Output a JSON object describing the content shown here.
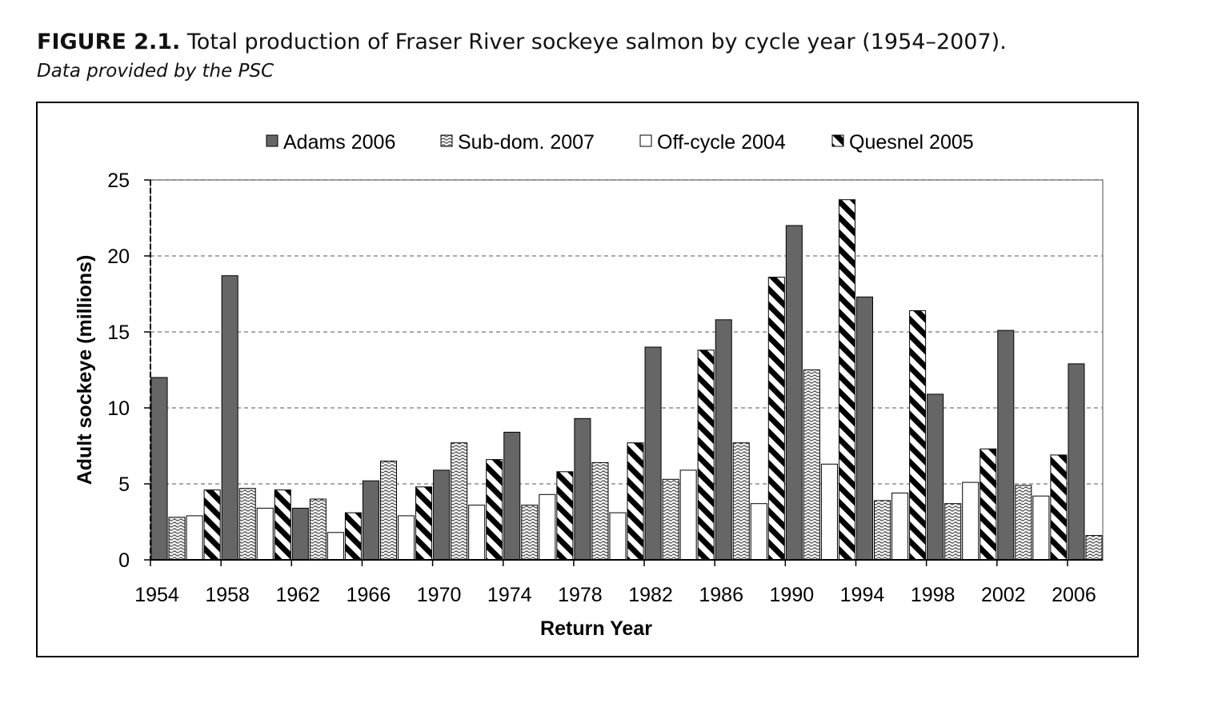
{
  "figure": {
    "label": "FIGURE 2.1.",
    "title": "Total production of Fraser River sockeye salmon by cycle year (1954–2007).",
    "subtitle": "Data provided by the PSC"
  },
  "chart_data": {
    "type": "bar",
    "xlabel": "Return Year",
    "ylabel": "Adult sockeye (millions)",
    "ylim": [
      0,
      25
    ],
    "yticks": [
      0,
      5,
      10,
      15,
      20,
      25
    ],
    "xticks": [
      1954,
      1958,
      1962,
      1966,
      1970,
      1974,
      1978,
      1982,
      1986,
      1990,
      1994,
      1998,
      2002,
      2006
    ],
    "xlim": [
      1954,
      2008
    ],
    "grid": "horizontal dashed",
    "legend_position": "top",
    "series": [
      {
        "name": "Adams 2006",
        "pattern": "solid-dark",
        "color": "#666666",
        "points": [
          [
            1954,
            12.0
          ],
          [
            1958,
            18.7
          ],
          [
            1962,
            3.4
          ],
          [
            1966,
            5.2
          ],
          [
            1970,
            5.9
          ],
          [
            1974,
            8.4
          ],
          [
            1978,
            9.3
          ],
          [
            1982,
            14.0
          ],
          [
            1986,
            15.8
          ],
          [
            1990,
            22.0
          ],
          [
            1994,
            17.3
          ],
          [
            1998,
            10.9
          ],
          [
            2002,
            15.1
          ],
          [
            2006,
            12.9
          ]
        ]
      },
      {
        "name": "Sub-dom. 2007",
        "pattern": "wavy",
        "color": "#555555",
        "points": [
          [
            1955,
            2.8
          ],
          [
            1959,
            4.7
          ],
          [
            1963,
            4.0
          ],
          [
            1967,
            6.5
          ],
          [
            1971,
            7.7
          ],
          [
            1975,
            3.6
          ],
          [
            1979,
            6.4
          ],
          [
            1983,
            5.3
          ],
          [
            1987,
            7.7
          ],
          [
            1991,
            12.5
          ],
          [
            1995,
            3.9
          ],
          [
            1999,
            3.7
          ],
          [
            2003,
            4.9
          ],
          [
            2007,
            1.6
          ]
        ]
      },
      {
        "name": "Off-cycle 2004",
        "pattern": "white",
        "color": "#ffffff",
        "points": [
          [
            1956,
            2.9
          ],
          [
            1960,
            3.4
          ],
          [
            1964,
            1.8
          ],
          [
            1968,
            2.9
          ],
          [
            1972,
            3.6
          ],
          [
            1976,
            4.3
          ],
          [
            1980,
            3.1
          ],
          [
            1984,
            5.9
          ],
          [
            1988,
            3.7
          ],
          [
            1992,
            6.3
          ],
          [
            1996,
            4.4
          ],
          [
            2000,
            5.1
          ],
          [
            2004,
            4.2
          ]
        ]
      },
      {
        "name": "Quesnel 2005",
        "pattern": "diagonal-stripes",
        "color": "#000000",
        "points": [
          [
            1957,
            4.6
          ],
          [
            1961,
            4.6
          ],
          [
            1965,
            3.1
          ],
          [
            1969,
            4.8
          ],
          [
            1973,
            6.6
          ],
          [
            1977,
            5.8
          ],
          [
            1981,
            7.7
          ],
          [
            1985,
            13.8
          ],
          [
            1989,
            18.6
          ],
          [
            1993,
            23.7
          ],
          [
            1997,
            16.4
          ],
          [
            2001,
            7.3
          ],
          [
            2005,
            6.9
          ]
        ]
      }
    ]
  }
}
